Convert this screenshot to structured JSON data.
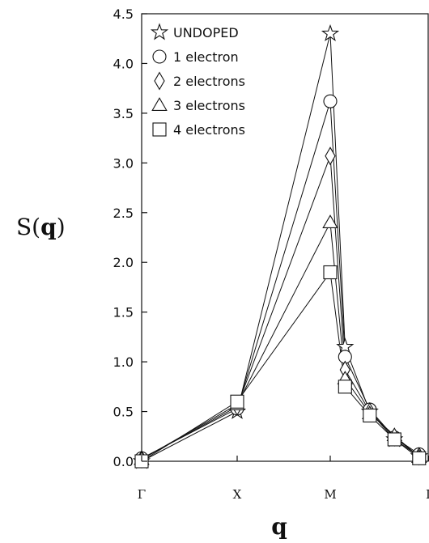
{
  "chart_data": {
    "type": "line",
    "ylabel_prefix": "S(",
    "ylabel_bold": "q",
    "ylabel_suffix": ")",
    "xlabel": "q",
    "x_ticks": [
      "Γ",
      "X",
      "M",
      "Γ"
    ],
    "y_ticks": [
      "0.0",
      "0.5",
      "1.0",
      "1.5",
      "2.0",
      "2.5",
      "3.0",
      "3.5",
      "4.0",
      "4.5"
    ],
    "ylim": [
      0,
      4.5
    ],
    "x": [
      0,
      1,
      2,
      2.15,
      2.4,
      2.65,
      2.9
    ],
    "legend_position": "top-left",
    "series": [
      {
        "name": "UNDOPED",
        "marker": "star",
        "values": [
          0.0,
          0.5,
          4.3,
          1.15,
          0.5,
          0.22,
          0.05
        ]
      },
      {
        "name": "1 electron",
        "marker": "circle",
        "values": [
          0.03,
          0.53,
          3.62,
          1.05,
          0.52,
          0.24,
          0.07
        ]
      },
      {
        "name": "2 electrons",
        "marker": "diamond",
        "values": [
          0.02,
          0.55,
          3.07,
          0.92,
          0.5,
          0.24,
          0.05
        ]
      },
      {
        "name": "3 electrons",
        "marker": "triangle",
        "values": [
          0.02,
          0.57,
          2.4,
          0.83,
          0.48,
          0.26,
          0.04
        ]
      },
      {
        "name": "4 electrons",
        "marker": "square",
        "values": [
          0.0,
          0.6,
          1.9,
          0.75,
          0.46,
          0.22,
          0.03
        ]
      }
    ]
  }
}
